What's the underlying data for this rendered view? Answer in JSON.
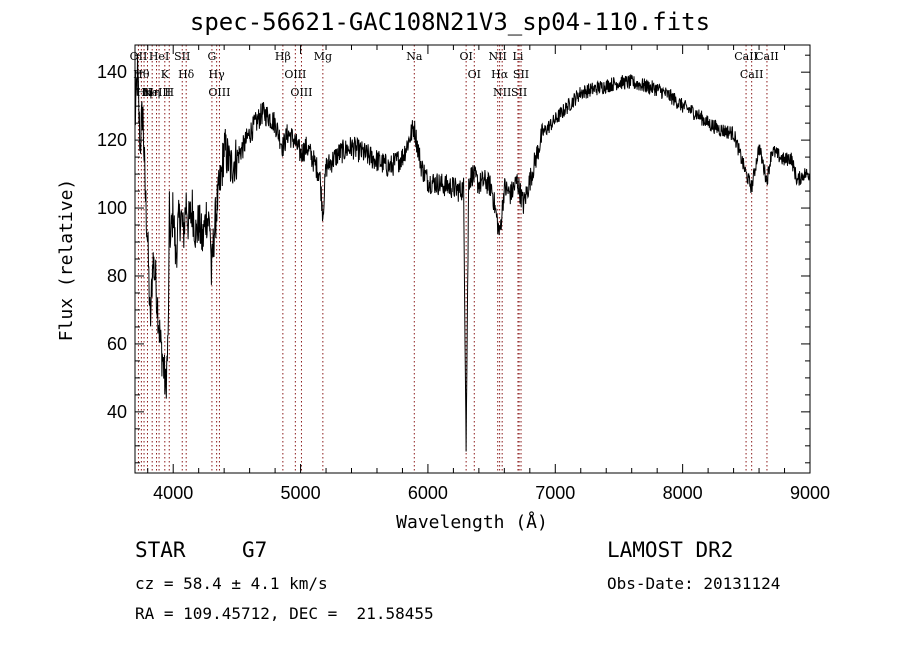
{
  "title": "spec-56621-GAC108N21V3_sp04-110.fits",
  "footer": {
    "class_label": "STAR",
    "subclass": "G7",
    "survey": "LAMOST DR2",
    "cz": "cz = 58.4 ± 4.1 km/s",
    "obs_date": "Obs-Date: 20131124",
    "coords": "RA = 109.45712, DEC =  21.58455"
  },
  "chart_data": {
    "type": "line",
    "xlabel": "Wavelength (Å)",
    "ylabel": "Flux (relative)",
    "xlim": [
      3700,
      9000
    ],
    "ylim": [
      22,
      148
    ],
    "xticks": [
      4000,
      5000,
      6000,
      7000,
      8000,
      9000
    ],
    "yticks": [
      40,
      60,
      80,
      100,
      120,
      140
    ],
    "grid": false,
    "series": [
      {
        "x": [
          3700,
          3720,
          3740,
          3760,
          3780,
          3800,
          3820,
          3840,
          3860,
          3880,
          3900,
          3920,
          3940,
          3960,
          3970,
          3980,
          4000,
          4020,
          4040,
          4060,
          4080,
          4102,
          4120,
          4150,
          4180,
          4200,
          4230,
          4260,
          4290,
          4300,
          4320,
          4340,
          4360,
          4380,
          4400,
          4450,
          4500,
          4550,
          4600,
          4650,
          4700,
          4750,
          4800,
          4861,
          4900,
          4950,
          5000,
          5050,
          5100,
          5150,
          5175,
          5200,
          5250,
          5300,
          5400,
          5500,
          5600,
          5700,
          5800,
          5890,
          5950,
          6000,
          6100,
          6200,
          6250,
          6280,
          6300,
          6320,
          6350,
          6400,
          6450,
          6500,
          6563,
          6600,
          6650,
          6700,
          6750,
          6800,
          6900,
          7000,
          7100,
          7200,
          7300,
          7400,
          7500,
          7600,
          7700,
          7800,
          7900,
          8000,
          8100,
          8200,
          8300,
          8400,
          8498,
          8542,
          8600,
          8662,
          8700,
          8800,
          8850,
          8900,
          8950,
          9000
        ],
        "y": [
          125,
          140,
          118,
          130,
          105,
          90,
          65,
          85,
          80,
          70,
          60,
          55,
          47,
          60,
          98,
          90,
          100,
          85,
          95,
          98,
          92,
          102,
          95,
          100,
          92,
          96,
          90,
          98,
          95,
          80,
          92,
          100,
          105,
          110,
          118,
          112,
          115,
          118,
          122,
          125,
          128,
          127,
          125,
          118,
          122,
          120,
          116,
          118,
          114,
          110,
          98,
          112,
          114,
          116,
          118,
          116,
          114,
          112,
          115,
          124,
          112,
          108,
          107,
          106,
          105,
          106,
          31,
          108,
          110,
          107,
          108,
          106,
          92,
          106,
          104,
          108,
          101,
          108,
          122,
          126,
          130,
          134,
          135,
          136,
          137,
          137,
          136,
          135,
          133,
          130,
          128,
          125,
          123,
          122,
          110,
          106,
          118,
          108,
          117,
          114,
          115,
          108,
          110,
          110
        ]
      }
    ],
    "lines": [
      {
        "x": 3727,
        "label": "OII"
      },
      {
        "x": 3750,
        "label": "Hθ"
      },
      {
        "x": 3771,
        "label": "Hη"
      },
      {
        "x": 3798,
        "label": "H"
      },
      {
        "x": 3835,
        "label": "Hη"
      },
      {
        "x": 3869,
        "label": "NeIII"
      },
      {
        "x": 3889,
        "label": "HeI"
      },
      {
        "x": 3934,
        "label": "K"
      },
      {
        "x": 3969,
        "label": "H"
      },
      {
        "x": 4071,
        "label": "SII"
      },
      {
        "x": 4102,
        "label": "Hδ"
      },
      {
        "x": 4304,
        "label": "G"
      },
      {
        "x": 4341,
        "label": "Hγ"
      },
      {
        "x": 4363,
        "label": "OIII"
      },
      {
        "x": 4861,
        "label": "Hβ"
      },
      {
        "x": 4959,
        "label": "OIII"
      },
      {
        "x": 5007,
        "label": "OIII"
      },
      {
        "x": 5175,
        "label": "Mg"
      },
      {
        "x": 5893,
        "label": "Na"
      },
      {
        "x": 6300,
        "label": "OI"
      },
      {
        "x": 6364,
        "label": "OI"
      },
      {
        "x": 6548,
        "label": "NII"
      },
      {
        "x": 6563,
        "label": "Hα"
      },
      {
        "x": 6583,
        "label": "NII"
      },
      {
        "x": 6707,
        "label": "Li"
      },
      {
        "x": 6716,
        "label": "SII"
      },
      {
        "x": 6731,
        "label": "SII"
      },
      {
        "x": 8498,
        "label": "CaII"
      },
      {
        "x": 8542,
        "label": "CaII"
      },
      {
        "x": 8662,
        "label": "CaII"
      }
    ],
    "line_color": "#000000",
    "marker_color": "#8b1a1a"
  }
}
